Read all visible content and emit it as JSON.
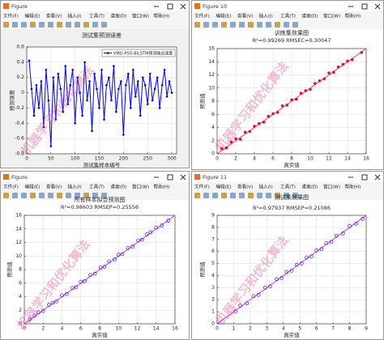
{
  "menu": [
    "文件(F)",
    "编辑(E)",
    "查看(V)",
    "插入(I)",
    "工具(T)",
    "桌面(D)",
    "窗口(W)",
    "帮助(H)"
  ],
  "watermark": "机器学习和优化算法",
  "windows": [
    {
      "title": "Figure"
    },
    {
      "title": "Figure 10"
    },
    {
      "title": "Figure"
    },
    {
      "title": "Figure 11"
    }
  ],
  "chart_data": [
    {
      "type": "line",
      "title": "测试集预测误差",
      "x_label": "测试集样本编号",
      "y_label": "预测误差",
      "x": [
        5,
        10,
        15,
        20,
        25,
        30,
        35,
        40,
        45,
        50,
        55,
        60,
        65,
        70,
        75,
        80,
        85,
        90,
        95,
        100,
        105,
        110,
        115,
        120,
        125,
        130,
        135,
        140,
        145,
        150,
        155,
        160,
        165,
        170,
        175,
        180,
        185,
        190,
        195,
        200,
        205,
        210,
        215,
        220,
        225,
        230,
        235,
        240,
        245,
        250,
        255,
        260,
        265,
        270,
        275,
        280,
        285,
        290,
        295,
        300
      ],
      "series": [
        {
          "name": "VMD-PSO-BiLSTM预测输出误差",
          "color": "#0000ff",
          "values": [
            0.42,
            0.05,
            -0.3,
            0.1,
            -0.2,
            0.15,
            -0.45,
            0.3,
            -0.1,
            -0.7,
            0.2,
            -0.35,
            0.25,
            0.05,
            -0.25,
            0.35,
            -0.15,
            0.1,
            0.3,
            -0.4,
            0.2,
            0.0,
            -0.3,
            0.4,
            -0.1,
            0.15,
            -0.5,
            0.25,
            0.05,
            -0.2,
            0.3,
            -0.35,
            0.1,
            0.2,
            -0.1,
            0.35,
            -0.25,
            0.05,
            0.15,
            -0.55,
            0.1,
            0.25,
            -0.2,
            0.3,
            -0.05,
            0.15,
            -0.3,
            0.2,
            0.1,
            -0.15,
            0.25,
            -0.1,
            0.05,
            0.2,
            -0.2,
            0.1,
            0.3,
            -0.05,
            0.15,
            0.0
          ]
        }
      ],
      "xlim": [
        0,
        310
      ],
      "xticks": [
        0,
        50,
        100,
        150,
        200,
        250,
        300
      ],
      "ylim": [
        -0.8,
        0.6
      ],
      "yticks": [
        -0.8,
        -0.6,
        -0.4,
        -0.2,
        0,
        0.2,
        0.4,
        0.6
      ],
      "grid": true,
      "legend": "north-east"
    },
    {
      "type": "scatter",
      "title": "训练集效果图",
      "subtitle": "R²=0.99269  RMSEC=0.30047",
      "x_label": "真实值",
      "y_label": "预测值",
      "x": [
        0.5,
        1,
        1.5,
        2,
        2.5,
        3,
        3.5,
        4,
        4.5,
        5,
        5.5,
        6,
        6.5,
        7,
        7.5,
        8,
        8.5,
        9,
        9.5,
        10,
        10.5,
        11,
        11.5,
        12,
        12.5,
        13,
        13.5,
        14,
        14.5,
        15.5
      ],
      "values": [
        0.8,
        0.9,
        1.8,
        2.3,
        2.2,
        3.3,
        3.4,
        4.2,
        4.6,
        4.8,
        5.7,
        6.1,
        6.3,
        7.3,
        7.4,
        8.2,
        8.3,
        9.2,
        9.6,
        9.8,
        10.7,
        11.1,
        11.4,
        12.3,
        12.4,
        13.2,
        13.6,
        14.1,
        14.3,
        15.4
      ],
      "color": "#ff0000",
      "marker": "dot",
      "reference_color": "#ff00ff",
      "xlim": [
        0,
        16
      ],
      "xticks": [
        0,
        2,
        4,
        6,
        8,
        10,
        12,
        14,
        16
      ],
      "ylim": [
        0,
        16
      ],
      "yticks": [
        0,
        2,
        4,
        6,
        8,
        10,
        12,
        14,
        16
      ],
      "grid": true
    },
    {
      "type": "scatter",
      "title": "所有样本拟合预测图",
      "subtitle": "R²=0.98603  RMSEP=0.25556",
      "x_label": "真实值",
      "y_label": "预测值",
      "x": [
        0.6,
        1.1,
        1.5,
        2,
        2.6,
        3,
        3.4,
        4,
        4.5,
        5.1,
        5.5,
        6,
        6.4,
        7,
        7.5,
        8.1,
        8.5,
        9,
        9.6,
        10,
        10.4,
        11,
        11.5,
        12.1,
        12.5,
        13,
        13.4,
        14,
        14.6,
        15.3
      ],
      "values": [
        0.7,
        1.2,
        1.7,
        1.9,
        2.8,
        3.1,
        3.3,
        4.2,
        4.4,
        5.3,
        5.4,
        6.2,
        6.3,
        7.2,
        7.4,
        8.3,
        8.4,
        9.2,
        9.5,
        10.2,
        10.3,
        11.2,
        11.4,
        12.3,
        12.4,
        13.2,
        13.5,
        14.2,
        14.5,
        15.2
      ],
      "color": "#0000ff",
      "marker": "circle-open",
      "reference_color": "#ff00ff",
      "xlim": [
        0,
        16
      ],
      "xticks": [
        0,
        2,
        4,
        6,
        8,
        10,
        12,
        14,
        16
      ],
      "ylim": [
        0,
        16
      ],
      "yticks": [
        0,
        2,
        4,
        6,
        8,
        10,
        12,
        14,
        16
      ],
      "grid": true
    },
    {
      "type": "scatter",
      "title": "测试集效果图",
      "subtitle": "R²=0.97937  RMSEP=0.21086",
      "x_label": "真实值",
      "y_label": "预测值",
      "x": [
        1.1,
        1.4,
        1.8,
        2.2,
        2.5,
        2.9,
        3.2,
        3.6,
        3.9,
        4.2,
        4.5,
        4.8,
        5.1,
        5.4,
        5.7,
        6.0,
        6.3,
        6.6,
        6.9,
        7.2,
        7.6,
        8.0,
        8.4,
        8.8
      ],
      "values": [
        1.0,
        1.5,
        1.7,
        2.3,
        2.4,
        3.0,
        3.1,
        3.7,
        3.8,
        4.3,
        4.4,
        4.9,
        5.0,
        5.5,
        5.6,
        6.1,
        6.2,
        6.7,
        6.8,
        7.3,
        7.5,
        8.1,
        8.3,
        8.7
      ],
      "color": "#0000ff",
      "marker": "circle-open",
      "reference_color": "#ff00ff",
      "xlim": [
        0,
        9
      ],
      "xticks": [
        0,
        1,
        2,
        3,
        4,
        5,
        6,
        7,
        8,
        9
      ],
      "ylim": [
        0,
        9
      ],
      "yticks": [
        0,
        1,
        2,
        3,
        4,
        5,
        6,
        7,
        8,
        9
      ],
      "grid": true
    }
  ]
}
